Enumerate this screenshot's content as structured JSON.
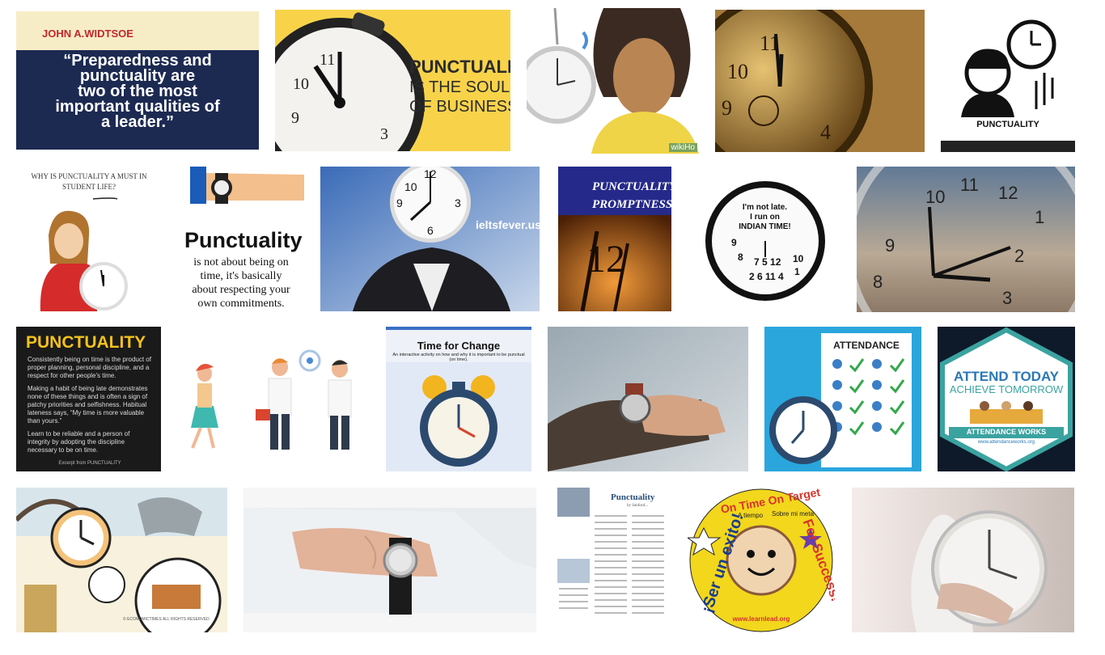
{
  "results": [
    {
      "quote_author": "JOHN A.WIDTSOE",
      "quote_lines": [
        "“Preparedness and",
        "punctuality are",
        "two of the most",
        "important qualities of",
        "a leader.”"
      ]
    },
    {
      "title": "PUNCTUALITY",
      "subtitle_lines": [
        "IS THE SOUL",
        "OF BUSINESS"
      ]
    },
    {
      "watermark": "wikiHo"
    },
    {},
    {
      "label": "PUNCTUALITY"
    },
    {
      "question_lines": [
        "WHY IS PUNCTUALITY A MUST IN",
        "STUDENT LIFE?"
      ]
    },
    {
      "title": "Punctuality",
      "body_lines": [
        "is not about being on",
        "time, it's basically",
        "about respecting your",
        "own commitments."
      ]
    },
    {
      "watermark": "ieltsfever.us"
    },
    {
      "title_lines": [
        "PUNCTUALITY &",
        "PROMPTNESS"
      ]
    },
    {
      "lines": [
        "I'm not late.",
        "I run on",
        "INDIAN TIME!"
      ]
    },
    {},
    {
      "title": "PUNCTUALITY",
      "paragraph1": "Consistently being on time is the product of proper planning, personal discipline, and a respect for other people's time.",
      "paragraph2": "Making a habit of being late demonstrates none of these things and is often a sign of patchy priorities and selfishness. Habitual lateness says, “My time is more valuable than yours.”",
      "paragraph3": "Learn to be reliable and a person of integrity by adopting the discipline necessary to be on time.",
      "excerpt": "Excerpt from PUNCTUALITY"
    },
    {},
    {
      "title": "Time for Change",
      "subtitle": "An interactive activity on how and why it is important to be punctual (on time)."
    },
    {},
    {
      "title": "ATTENDANCE"
    },
    {
      "line1": "ATTEND TODAY",
      "line2": "ACHIEVE TOMORROW",
      "banner": "ATTENDANCE WORKS",
      "url": "www.attendanceworks.org"
    },
    {
      "watermark": "© ECONOMICTIMES ALL RIGHTS RESERVED"
    },
    {},
    {
      "title": "Punctuality",
      "subtitle": "by Sanford..."
    },
    {
      "top_text": "On Time On Target",
      "spanish": "¡Ser un exito!",
      "english": "For Success!",
      "small1": "A tiempo",
      "small2": "Sobre mi meta",
      "url": "www.learnlead.org"
    },
    {}
  ]
}
